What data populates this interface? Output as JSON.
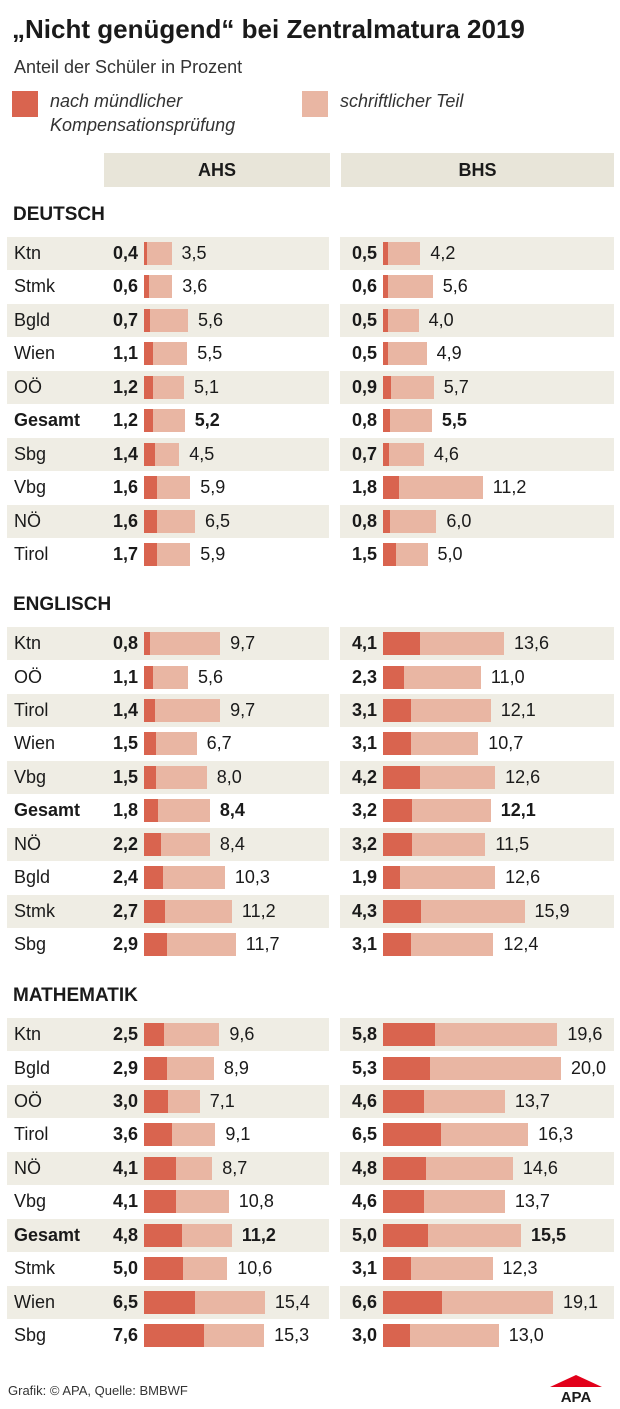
{
  "title": "„Nicht genügend“ bei Zentralmatura 2019",
  "subtitle": "Anteil der Schüler in Prozent",
  "legend": {
    "oral": "nach mündlicher Kompensationsprüfung",
    "oral_line1": "nach mündlicher",
    "oral_line2": "Kompensationsprüfung",
    "written": "schriftlicher Teil"
  },
  "colors": {
    "oral": "#d9644f",
    "written": "#e9b6a3",
    "header_bg": "#e8e5d9",
    "row_shade": "#efede4",
    "apa_red": "#e2001a"
  },
  "columns": [
    "AHS",
    "BHS"
  ],
  "footer": "Grafik: © APA, Quelle: BMBWF",
  "logo_text": "APA",
  "chart_data": {
    "type": "bar",
    "stacked_semantics": "written bar shows total share after written part; oral bar shows share remaining after oral compensation exam",
    "sections": [
      {
        "name": "DEUTSCH",
        "rows": [
          {
            "region": "Ktn",
            "ahs": {
              "oral": "0,4",
              "written": "3,5"
            },
            "bhs": {
              "oral": "0,5",
              "written": "4,2"
            }
          },
          {
            "region": "Stmk",
            "ahs": {
              "oral": "0,6",
              "written": "3,6"
            },
            "bhs": {
              "oral": "0,6",
              "written": "5,6"
            }
          },
          {
            "region": "Bgld",
            "ahs": {
              "oral": "0,7",
              "written": "5,6"
            },
            "bhs": {
              "oral": "0,5",
              "written": "4,0"
            }
          },
          {
            "region": "Wien",
            "ahs": {
              "oral": "1,1",
              "written": "5,5"
            },
            "bhs": {
              "oral": "0,5",
              "written": "4,9"
            }
          },
          {
            "region": "OÖ",
            "ahs": {
              "oral": "1,2",
              "written": "5,1"
            },
            "bhs": {
              "oral": "0,9",
              "written": "5,7"
            }
          },
          {
            "region": "Gesamt",
            "bold": true,
            "ahs": {
              "oral": "1,2",
              "written": "5,2"
            },
            "bhs": {
              "oral": "0,8",
              "written": "5,5"
            }
          },
          {
            "region": "Sbg",
            "ahs": {
              "oral": "1,4",
              "written": "4,5"
            },
            "bhs": {
              "oral": "0,7",
              "written": "4,6"
            }
          },
          {
            "region": "Vbg",
            "ahs": {
              "oral": "1,6",
              "written": "5,9"
            },
            "bhs": {
              "oral": "1,8",
              "written": "11,2"
            }
          },
          {
            "region": "NÖ",
            "ahs": {
              "oral": "1,6",
              "written": "6,5"
            },
            "bhs": {
              "oral": "0,8",
              "written": "6,0"
            }
          },
          {
            "region": "Tirol",
            "ahs": {
              "oral": "1,7",
              "written": "5,9"
            },
            "bhs": {
              "oral": "1,5",
              "written": "5,0"
            }
          }
        ]
      },
      {
        "name": "ENGLISCH",
        "rows": [
          {
            "region": "Ktn",
            "ahs": {
              "oral": "0,8",
              "written": "9,7"
            },
            "bhs": {
              "oral": "4,1",
              "written": "13,6"
            }
          },
          {
            "region": "OÖ",
            "ahs": {
              "oral": "1,1",
              "written": "5,6"
            },
            "bhs": {
              "oral": "2,3",
              "written": "11,0"
            }
          },
          {
            "region": "Tirol",
            "ahs": {
              "oral": "1,4",
              "written": "9,7"
            },
            "bhs": {
              "oral": "3,1",
              "written": "12,1"
            }
          },
          {
            "region": "Wien",
            "ahs": {
              "oral": "1,5",
              "written": "6,7"
            },
            "bhs": {
              "oral": "3,1",
              "written": "10,7"
            }
          },
          {
            "region": "Vbg",
            "ahs": {
              "oral": "1,5",
              "written": "8,0"
            },
            "bhs": {
              "oral": "4,2",
              "written": "12,6"
            }
          },
          {
            "region": "Gesamt",
            "bold": true,
            "ahs": {
              "oral": "1,8",
              "written": "8,4"
            },
            "bhs": {
              "oral": "3,2",
              "written": "12,1"
            }
          },
          {
            "region": "NÖ",
            "ahs": {
              "oral": "2,2",
              "written": "8,4"
            },
            "bhs": {
              "oral": "3,2",
              "written": "11,5"
            }
          },
          {
            "region": "Bgld",
            "ahs": {
              "oral": "2,4",
              "written": "10,3"
            },
            "bhs": {
              "oral": "1,9",
              "written": "12,6"
            }
          },
          {
            "region": "Stmk",
            "ahs": {
              "oral": "2,7",
              "written": "11,2"
            },
            "bhs": {
              "oral": "4,3",
              "written": "15,9"
            }
          },
          {
            "region": "Sbg",
            "ahs": {
              "oral": "2,9",
              "written": "11,7"
            },
            "bhs": {
              "oral": "3,1",
              "written": "12,4"
            }
          }
        ]
      },
      {
        "name": "MATHEMATIK",
        "rows": [
          {
            "region": "Ktn",
            "ahs": {
              "oral": "2,5",
              "written": "9,6"
            },
            "bhs": {
              "oral": "5,8",
              "written": "19,6"
            }
          },
          {
            "region": "Bgld",
            "ahs": {
              "oral": "2,9",
              "written": "8,9"
            },
            "bhs": {
              "oral": "5,3",
              "written": "20,0"
            }
          },
          {
            "region": "OÖ",
            "ahs": {
              "oral": "3,0",
              "written": "7,1"
            },
            "bhs": {
              "oral": "4,6",
              "written": "13,7"
            }
          },
          {
            "region": "Tirol",
            "ahs": {
              "oral": "3,6",
              "written": "9,1"
            },
            "bhs": {
              "oral": "6,5",
              "written": "16,3"
            }
          },
          {
            "region": "NÖ",
            "ahs": {
              "oral": "4,1",
              "written": "8,7"
            },
            "bhs": {
              "oral": "4,8",
              "written": "14,6"
            }
          },
          {
            "region": "Vbg",
            "ahs": {
              "oral": "4,1",
              "written": "10,8"
            },
            "bhs": {
              "oral": "4,6",
              "written": "13,7"
            }
          },
          {
            "region": "Gesamt",
            "bold": true,
            "ahs": {
              "oral": "4,8",
              "written": "11,2"
            },
            "bhs": {
              "oral": "5,0",
              "written": "15,5"
            }
          },
          {
            "region": "Stmk",
            "ahs": {
              "oral": "5,0",
              "written": "10,6"
            },
            "bhs": {
              "oral": "3,1",
              "written": "12,3"
            }
          },
          {
            "region": "Wien",
            "ahs": {
              "oral": "6,5",
              "written": "15,4"
            },
            "bhs": {
              "oral": "6,6",
              "written": "19,1"
            }
          },
          {
            "region": "Sbg",
            "ahs": {
              "oral": "7,6",
              "written": "15,3"
            },
            "bhs": {
              "oral": "3,0",
              "written": "13,0"
            }
          }
        ]
      }
    ]
  }
}
